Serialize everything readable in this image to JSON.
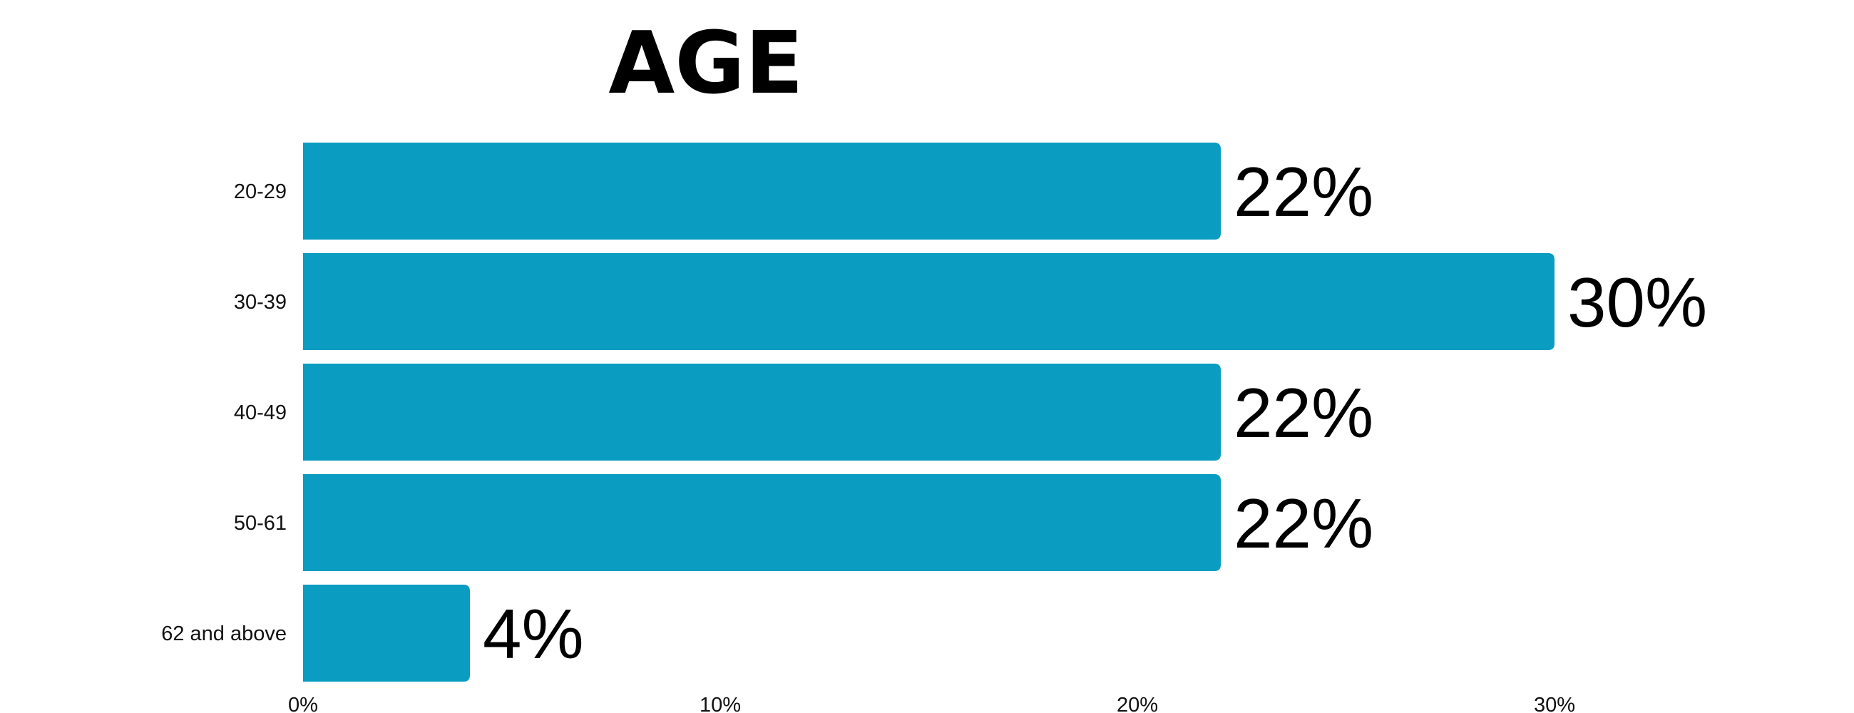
{
  "chart_data": {
    "type": "bar",
    "orientation": "horizontal",
    "title": "AGE",
    "categories": [
      "20-29",
      "30-39",
      "40-49",
      "50-61",
      "62 and above"
    ],
    "values": [
      22,
      30,
      22,
      22,
      4
    ],
    "data_labels": [
      "22%",
      "30%",
      "22%",
      "22%",
      "4%"
    ],
    "xlabel": "",
    "ylabel": "",
    "xlim": [
      0,
      30
    ],
    "x_ticks": [
      0,
      10,
      20,
      30
    ],
    "x_tick_labels": [
      "0%",
      "10%",
      "20%",
      "30%"
    ],
    "grid": false,
    "legend": "none",
    "colors": {
      "bar": "#0B9CC1",
      "text": "#000000"
    }
  }
}
